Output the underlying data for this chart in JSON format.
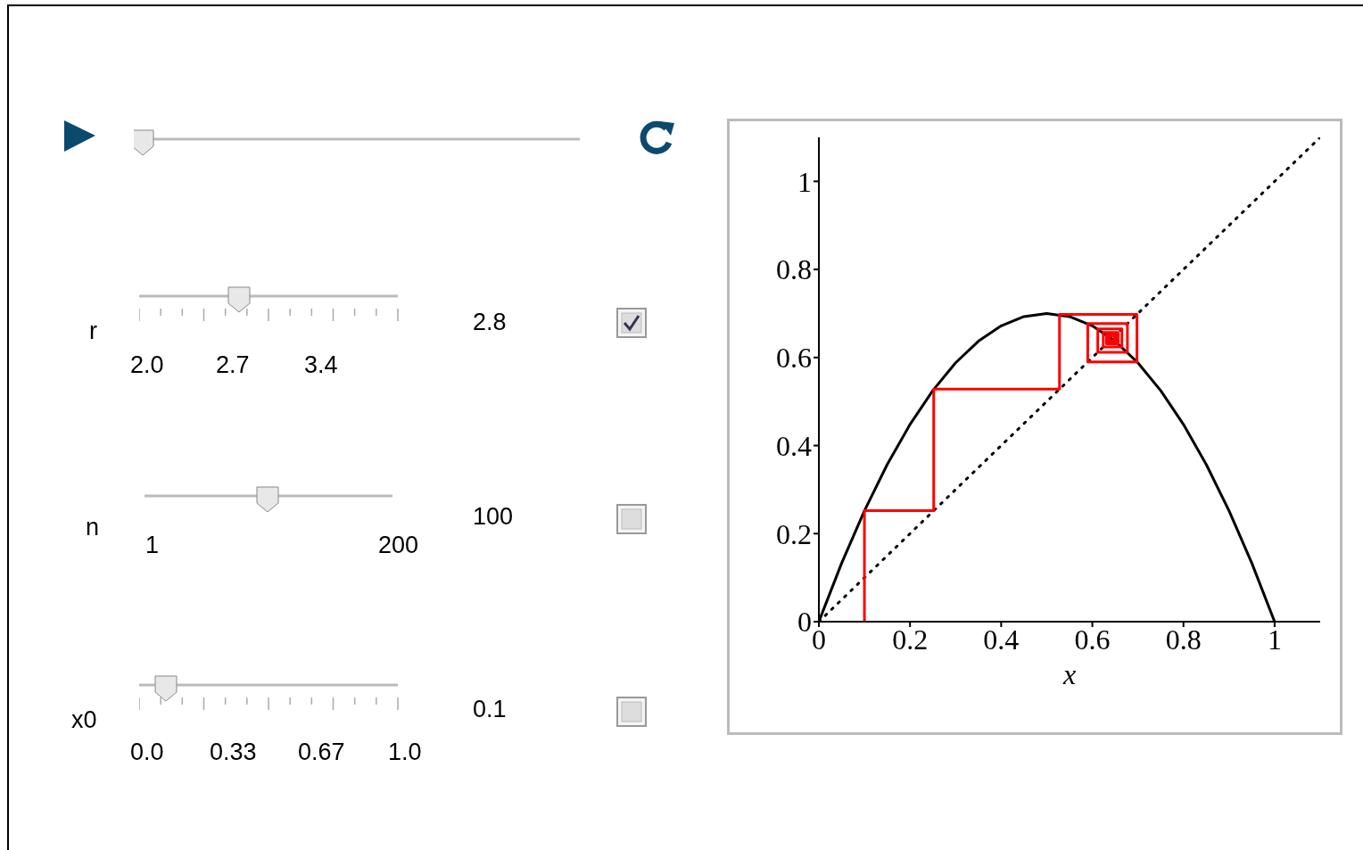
{
  "chart_data": {
    "type": "line",
    "xlabel": "x",
    "xlim": [
      0,
      1.1
    ],
    "ylim": [
      0,
      1.1
    ],
    "xticks": [
      0,
      0.2,
      0.4,
      0.6,
      0.8,
      1
    ],
    "yticks": [
      0,
      0.2,
      0.4,
      0.6,
      0.8,
      1
    ],
    "marker": "none",
    "series": [
      {
        "color": "#000000",
        "line_style": "solid",
        "x": [
          0,
          0.05,
          0.1,
          0.15,
          0.2,
          0.25,
          0.3,
          0.35,
          0.4,
          0.45,
          0.5,
          0.55,
          0.6,
          0.65,
          0.7,
          0.75,
          0.8,
          0.85,
          0.9,
          0.95,
          1
        ],
        "values": [
          0,
          0.133,
          0.252,
          0.357,
          0.448,
          0.525,
          0.588,
          0.637,
          0.672,
          0.693,
          0.7,
          0.693,
          0.672,
          0.637,
          0.588,
          0.525,
          0.448,
          0.357,
          0.252,
          0.133,
          0
        ]
      },
      {
        "color": "#000000",
        "line_style": "dotted",
        "x": [
          0,
          1.1
        ],
        "values": [
          0,
          1.1
        ]
      },
      {
        "color": "#ff0000",
        "line_style": "solid",
        "x": [
          0.1,
          0.1,
          0.252,
          0.252,
          0.528,
          0.528,
          0.698,
          0.698,
          0.59,
          0.59,
          0.677,
          0.677,
          0.612,
          0.612,
          0.665,
          0.665,
          0.624,
          0.624,
          0.657,
          0.657,
          0.631,
          0.631,
          0.652,
          0.652,
          0.635,
          0.635,
          0.649,
          0.649,
          0.638,
          0.638
        ],
        "values": [
          0,
          0.252,
          0.252,
          0.528,
          0.528,
          0.698,
          0.698,
          0.59,
          0.59,
          0.677,
          0.677,
          0.612,
          0.612,
          0.665,
          0.665,
          0.624,
          0.624,
          0.657,
          0.657,
          0.631,
          0.631,
          0.652,
          0.652,
          0.635,
          0.635,
          0.649,
          0.649,
          0.638,
          0.638,
          0.646
        ]
      }
    ],
    "annotations": [
      "r",
      "2.0",
      "2.7",
      "3.4",
      "2.8",
      "n",
      "1",
      "200",
      "100",
      "x0",
      "0.0",
      "0.33",
      "0.67",
      "1.0",
      "0.1"
    ]
  }
}
